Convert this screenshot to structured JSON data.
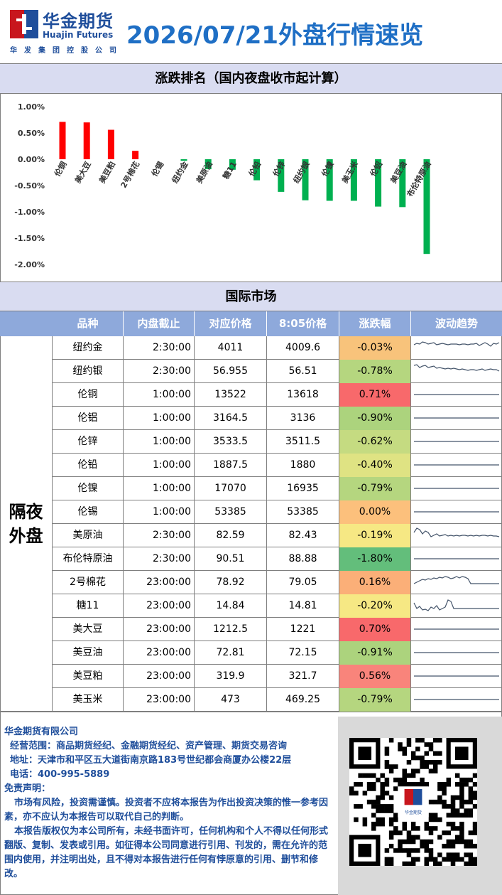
{
  "header": {
    "brand_cn": "华金期货",
    "brand_en": "Huajin Futures",
    "brand_sub": "华发集团控股公司",
    "title": "2026/07/21外盘行情速览"
  },
  "section1_title": "涨跌排名（国内夜盘收市起计算）",
  "section2_title": "国际市场",
  "chart_data": {
    "type": "bar",
    "categories": [
      "伦铜",
      "美大豆",
      "美豆粕",
      "2号棉花",
      "伦锡",
      "纽约金",
      "美原油",
      "糖11",
      "伦铅",
      "伦锌",
      "纽约银",
      "伦镍",
      "美玉米",
      "伦铝",
      "美豆油",
      "布伦特原油"
    ],
    "values": [
      0.71,
      0.7,
      0.56,
      0.16,
      0.0,
      -0.03,
      -0.19,
      -0.2,
      -0.4,
      -0.62,
      -0.78,
      -0.79,
      -0.79,
      -0.9,
      -0.91,
      -1.8
    ],
    "y_ticks": [
      "1.00%",
      "0.50%",
      "0.00%",
      "-0.50%",
      "-1.00%",
      "-1.50%",
      "-2.00%"
    ],
    "ylim": [
      -2.0,
      1.0
    ],
    "positive_color": "#ff0000",
    "negative_color": "#00b050"
  },
  "table": {
    "side_label": "隔夜外盘",
    "headers": [
      "品种",
      "内盘截止",
      "对应价格",
      "8:05价格",
      "涨跌幅",
      "波动趋势"
    ],
    "rows": [
      {
        "name": "纽约金",
        "time": "2:30:00",
        "price": "4011",
        "price805": "4009.6",
        "chg": "-0.03%",
        "color": "#f8c37b",
        "trend": "wavy1"
      },
      {
        "name": "纽约银",
        "time": "2:30:00",
        "price": "56.955",
        "price805": "56.51",
        "chg": "-0.78%",
        "color": "#b5d67f",
        "trend": "wavy2"
      },
      {
        "name": "伦铜",
        "time": "1:00:00",
        "price": "13522",
        "price805": "13618",
        "chg": "0.71%",
        "color": "#f8696b",
        "trend": "flat"
      },
      {
        "name": "伦铝",
        "time": "1:00:00",
        "price": "3164.5",
        "price805": "3136",
        "chg": "-0.90%",
        "color": "#acd37d",
        "trend": "flat"
      },
      {
        "name": "伦锌",
        "time": "1:00:00",
        "price": "3533.5",
        "price805": "3511.5",
        "chg": "-0.62%",
        "color": "#c5db81",
        "trend": "flat"
      },
      {
        "name": "伦铅",
        "time": "1:00:00",
        "price": "1887.5",
        "price805": "1880",
        "chg": "-0.40%",
        "color": "#dfe383",
        "trend": "flat"
      },
      {
        "name": "伦镍",
        "time": "1:00:00",
        "price": "17070",
        "price805": "16935",
        "chg": "-0.79%",
        "color": "#b5d67f",
        "trend": "flat"
      },
      {
        "name": "伦锡",
        "time": "1:00:00",
        "price": "53385",
        "price805": "53385",
        "chg": "0.00%",
        "color": "#fcc07c",
        "trend": "flat"
      },
      {
        "name": "美原油",
        "time": "2:30:00",
        "price": "82.59",
        "price805": "82.43",
        "chg": "-0.19%",
        "color": "#f6e884",
        "trend": "crude"
      },
      {
        "name": "布伦特原油",
        "time": "2:30:00",
        "price": "90.51",
        "price805": "88.88",
        "chg": "-1.80%",
        "color": "#63be7b",
        "trend": "flat"
      },
      {
        "name": "2号棉花",
        "time": "23:00:00",
        "price": "78.92",
        "price805": "79.05",
        "chg": "0.16%",
        "color": "#fbaf78",
        "trend": "cotton"
      },
      {
        "name": "糖11",
        "time": "23:00:00",
        "price": "14.84",
        "price805": "14.81",
        "chg": "-0.20%",
        "color": "#f6e884",
        "trend": "sugar"
      },
      {
        "name": "美大豆",
        "time": "23:00:00",
        "price": "1212.5",
        "price805": "1221",
        "chg": "0.70%",
        "color": "#f8696b",
        "trend": "flat"
      },
      {
        "name": "美豆油",
        "time": "23:00:00",
        "price": "72.81",
        "price805": "72.15",
        "chg": "-0.91%",
        "color": "#acd37d",
        "trend": "flat"
      },
      {
        "name": "美豆粕",
        "time": "23:00:00",
        "price": "319.9",
        "price805": "321.7",
        "chg": "0.56%",
        "color": "#f9847b",
        "trend": "flat"
      },
      {
        "name": "美玉米",
        "time": "23:00:00",
        "price": "473",
        "price805": "469.25",
        "chg": "-0.79%",
        "color": "#b5d67f",
        "trend": "flat"
      }
    ]
  },
  "footer": {
    "company": "华金期货有限公司",
    "scope": "经营范围：商品期货经纪、金融期货经纪、资产管理、期货交易咨询",
    "address": "地址：天津市和平区五大道街南京路183号世纪都会商厦办公楼22层",
    "phone": "电话：400-995-5889",
    "disclaimer_title": "免责声明：",
    "disclaimer_1": "市场有风险，投资需谨慎。投资者不应将本报告为作出投资决策的惟一参考因素，亦不应认为本报告可以取代自己的判断。",
    "disclaimer_2": "本报告版权仅为本公司所有，未经书面许可，任何机构和个人不得以任何形式翻版、复制、发表或引用。如征得本公司同意进行引用、刊发的，需在允许的范围内使用，并注明出处，且不得对本报告进行任何有悖原意的引用、删节和修改。",
    "qr_logo_text": "华金期货"
  }
}
